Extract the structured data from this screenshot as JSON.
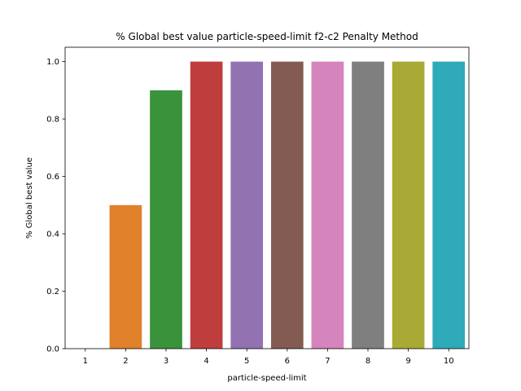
{
  "chart_data": {
    "type": "bar",
    "title": "% Global best value particle-speed-limit f2-c2 Penalty Method",
    "xlabel": "particle-speed-limit",
    "ylabel": "% Global best value",
    "categories": [
      "1",
      "2",
      "3",
      "4",
      "5",
      "6",
      "7",
      "8",
      "9",
      "10"
    ],
    "values": [
      0.0,
      0.5,
      0.9,
      1.0,
      1.0,
      1.0,
      1.0,
      1.0,
      1.0,
      1.0
    ],
    "colors": [
      "#3274a1",
      "#e1812c",
      "#3a923a",
      "#c03d3e",
      "#9372b2",
      "#845b53",
      "#d684bd",
      "#7f7f7f",
      "#a9aa35",
      "#2eaab8"
    ],
    "ylim": [
      0,
      1.05
    ],
    "yticks": [
      "0.0",
      "0.2",
      "0.4",
      "0.6",
      "0.8",
      "1.0"
    ],
    "grid": false,
    "legend": "none"
  }
}
